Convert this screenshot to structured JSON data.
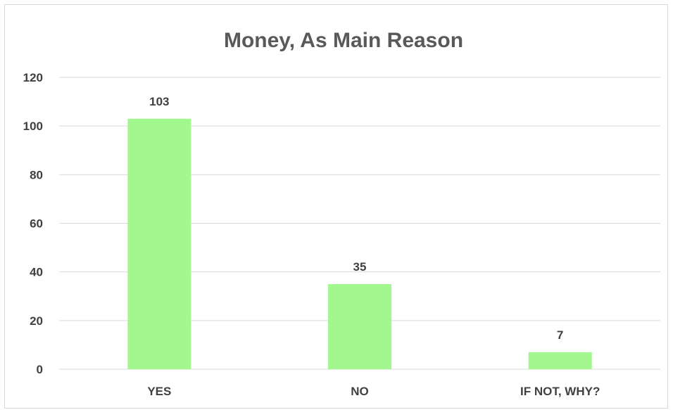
{
  "chart_data": {
    "type": "bar",
    "title": "Money, As Main Reason",
    "categories": [
      "YES",
      "NO",
      "IF NOT, WHY?"
    ],
    "values": [
      103,
      35,
      7
    ],
    "data_labels": [
      "103",
      "35",
      "7"
    ],
    "y_ticks": [
      "0",
      "20",
      "40",
      "60",
      "80",
      "100",
      "120"
    ],
    "ylim": [
      0,
      120
    ],
    "grid": true,
    "legend": "none",
    "bar_color": "#a2f78f",
    "grid_color": "#d9d9d9"
  }
}
